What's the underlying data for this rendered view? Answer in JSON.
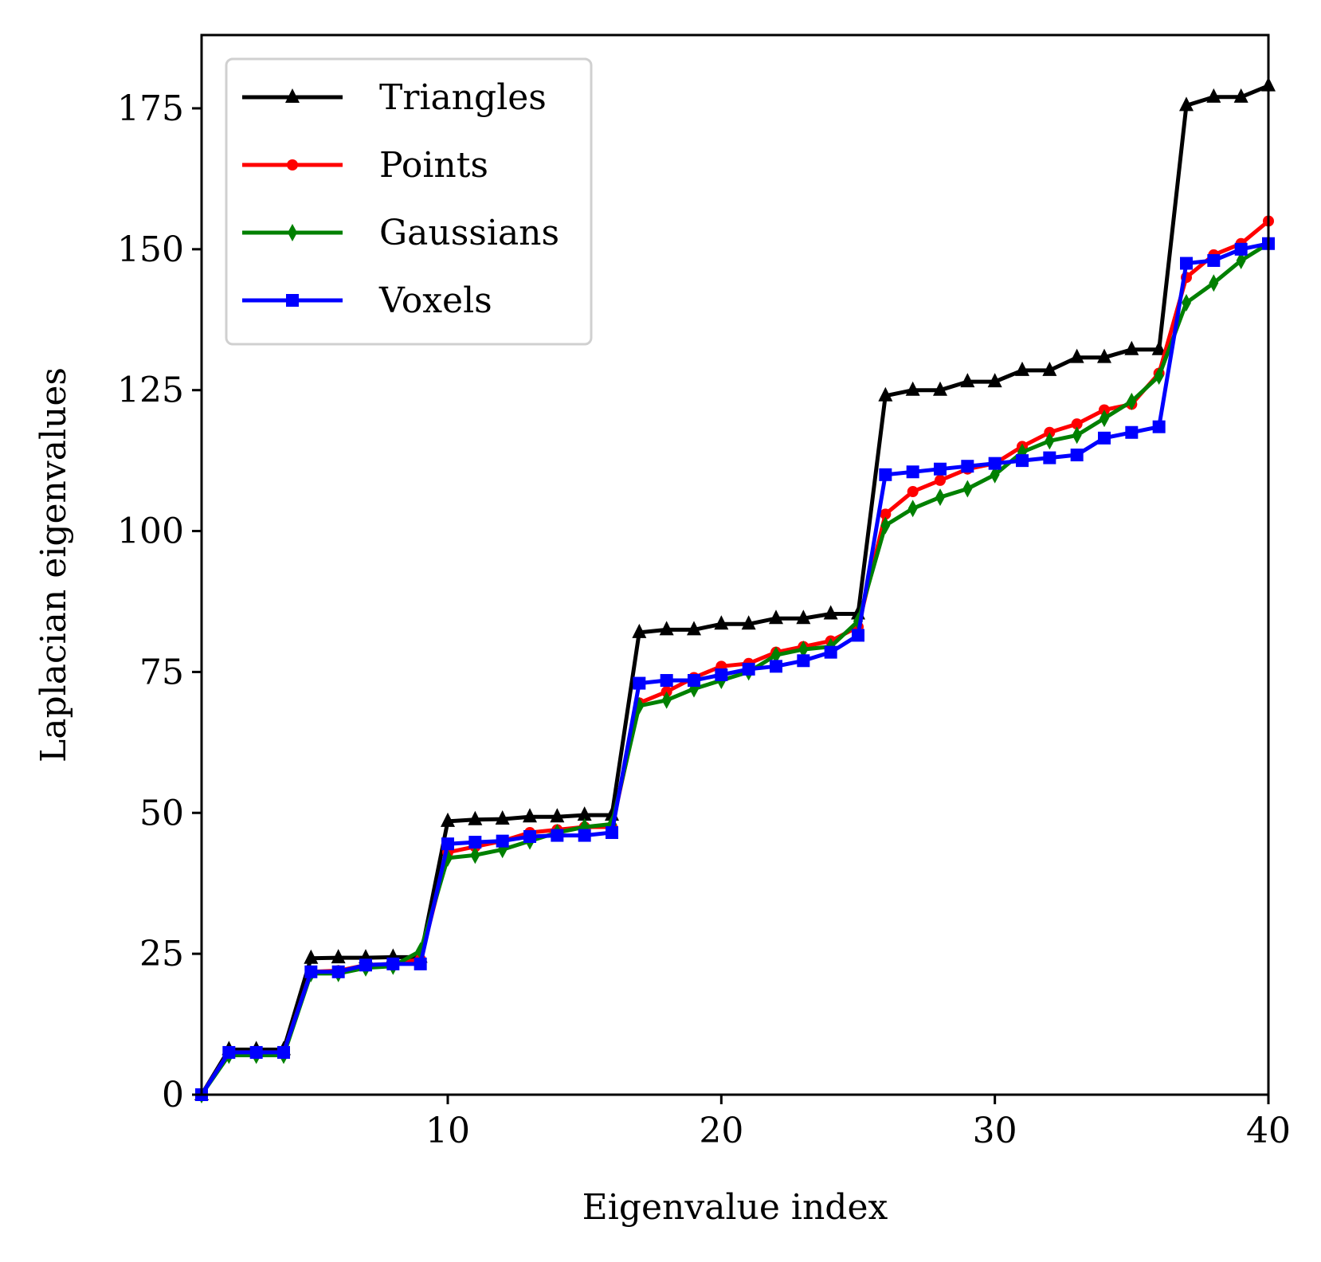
{
  "chart_data": {
    "type": "line",
    "title": "",
    "xlabel": "Eigenvalue index",
    "ylabel": "Laplacian eigenvalues",
    "xlim": [
      1,
      40
    ],
    "ylim": [
      0,
      188
    ],
    "xticks": [
      10,
      20,
      30,
      40
    ],
    "yticks": [
      0,
      25,
      50,
      75,
      100,
      125,
      150,
      175
    ],
    "grid": false,
    "legend_position": "top-left",
    "x": [
      1,
      2,
      3,
      4,
      5,
      6,
      7,
      8,
      9,
      10,
      11,
      12,
      13,
      14,
      15,
      16,
      17,
      18,
      19,
      20,
      21,
      22,
      23,
      24,
      25,
      26,
      27,
      28,
      29,
      30,
      31,
      32,
      33,
      34,
      35,
      36,
      37,
      38,
      39,
      40
    ],
    "series": [
      {
        "name": "Triangles",
        "color": "#000000",
        "marker": "triangle",
        "values": [
          0,
          8,
          8,
          8,
          24.2,
          24.3,
          24.3,
          24.4,
          24.4,
          48.5,
          48.8,
          48.9,
          49.3,
          49.3,
          49.6,
          49.6,
          82,
          82.5,
          82.5,
          83.5,
          83.5,
          84.5,
          84.5,
          85.3,
          85.3,
          124,
          125,
          125,
          126.5,
          126.5,
          128.5,
          128.5,
          130.8,
          130.8,
          132.2,
          132.2,
          175.5,
          177,
          177,
          179
        ]
      },
      {
        "name": "Points",
        "color": "#ff0000",
        "marker": "circle",
        "values": [
          0,
          7.5,
          7.5,
          7.5,
          21.8,
          22,
          23,
          23.2,
          24,
          43,
          44,
          45,
          46.5,
          47,
          47.5,
          47.5,
          69.5,
          71.5,
          74,
          76,
          76.5,
          78.5,
          79.5,
          80.5,
          83,
          103,
          107,
          109,
          111,
          112,
          115,
          117.5,
          119,
          121.5,
          122.5,
          128,
          145,
          149,
          151,
          155
        ]
      },
      {
        "name": "Gaussians",
        "color": "#008000",
        "marker": "diamond",
        "values": [
          0,
          7,
          7,
          7,
          21.5,
          21.5,
          22.5,
          22.8,
          25.5,
          42,
          42.5,
          43.5,
          45,
          46.5,
          47.5,
          48,
          69,
          70,
          72,
          73.5,
          75,
          78,
          79,
          79.5,
          84,
          101,
          104,
          106,
          107.5,
          110,
          114,
          116,
          117,
          120,
          123,
          127.5,
          140.5,
          144,
          148,
          151
        ]
      },
      {
        "name": "Voxels",
        "color": "#0000ff",
        "marker": "square",
        "values": [
          0,
          7.5,
          7.5,
          7.5,
          21.8,
          21.8,
          23,
          23.2,
          23.2,
          44.5,
          44.8,
          45,
          45.8,
          46,
          46,
          46.5,
          73,
          73.5,
          73.5,
          74.5,
          75.5,
          76,
          77,
          78.5,
          81.5,
          110,
          110.5,
          111,
          111.5,
          112,
          112.5,
          113,
          113.5,
          116.5,
          117.5,
          118.5,
          147.5,
          148,
          150,
          151
        ]
      }
    ]
  }
}
